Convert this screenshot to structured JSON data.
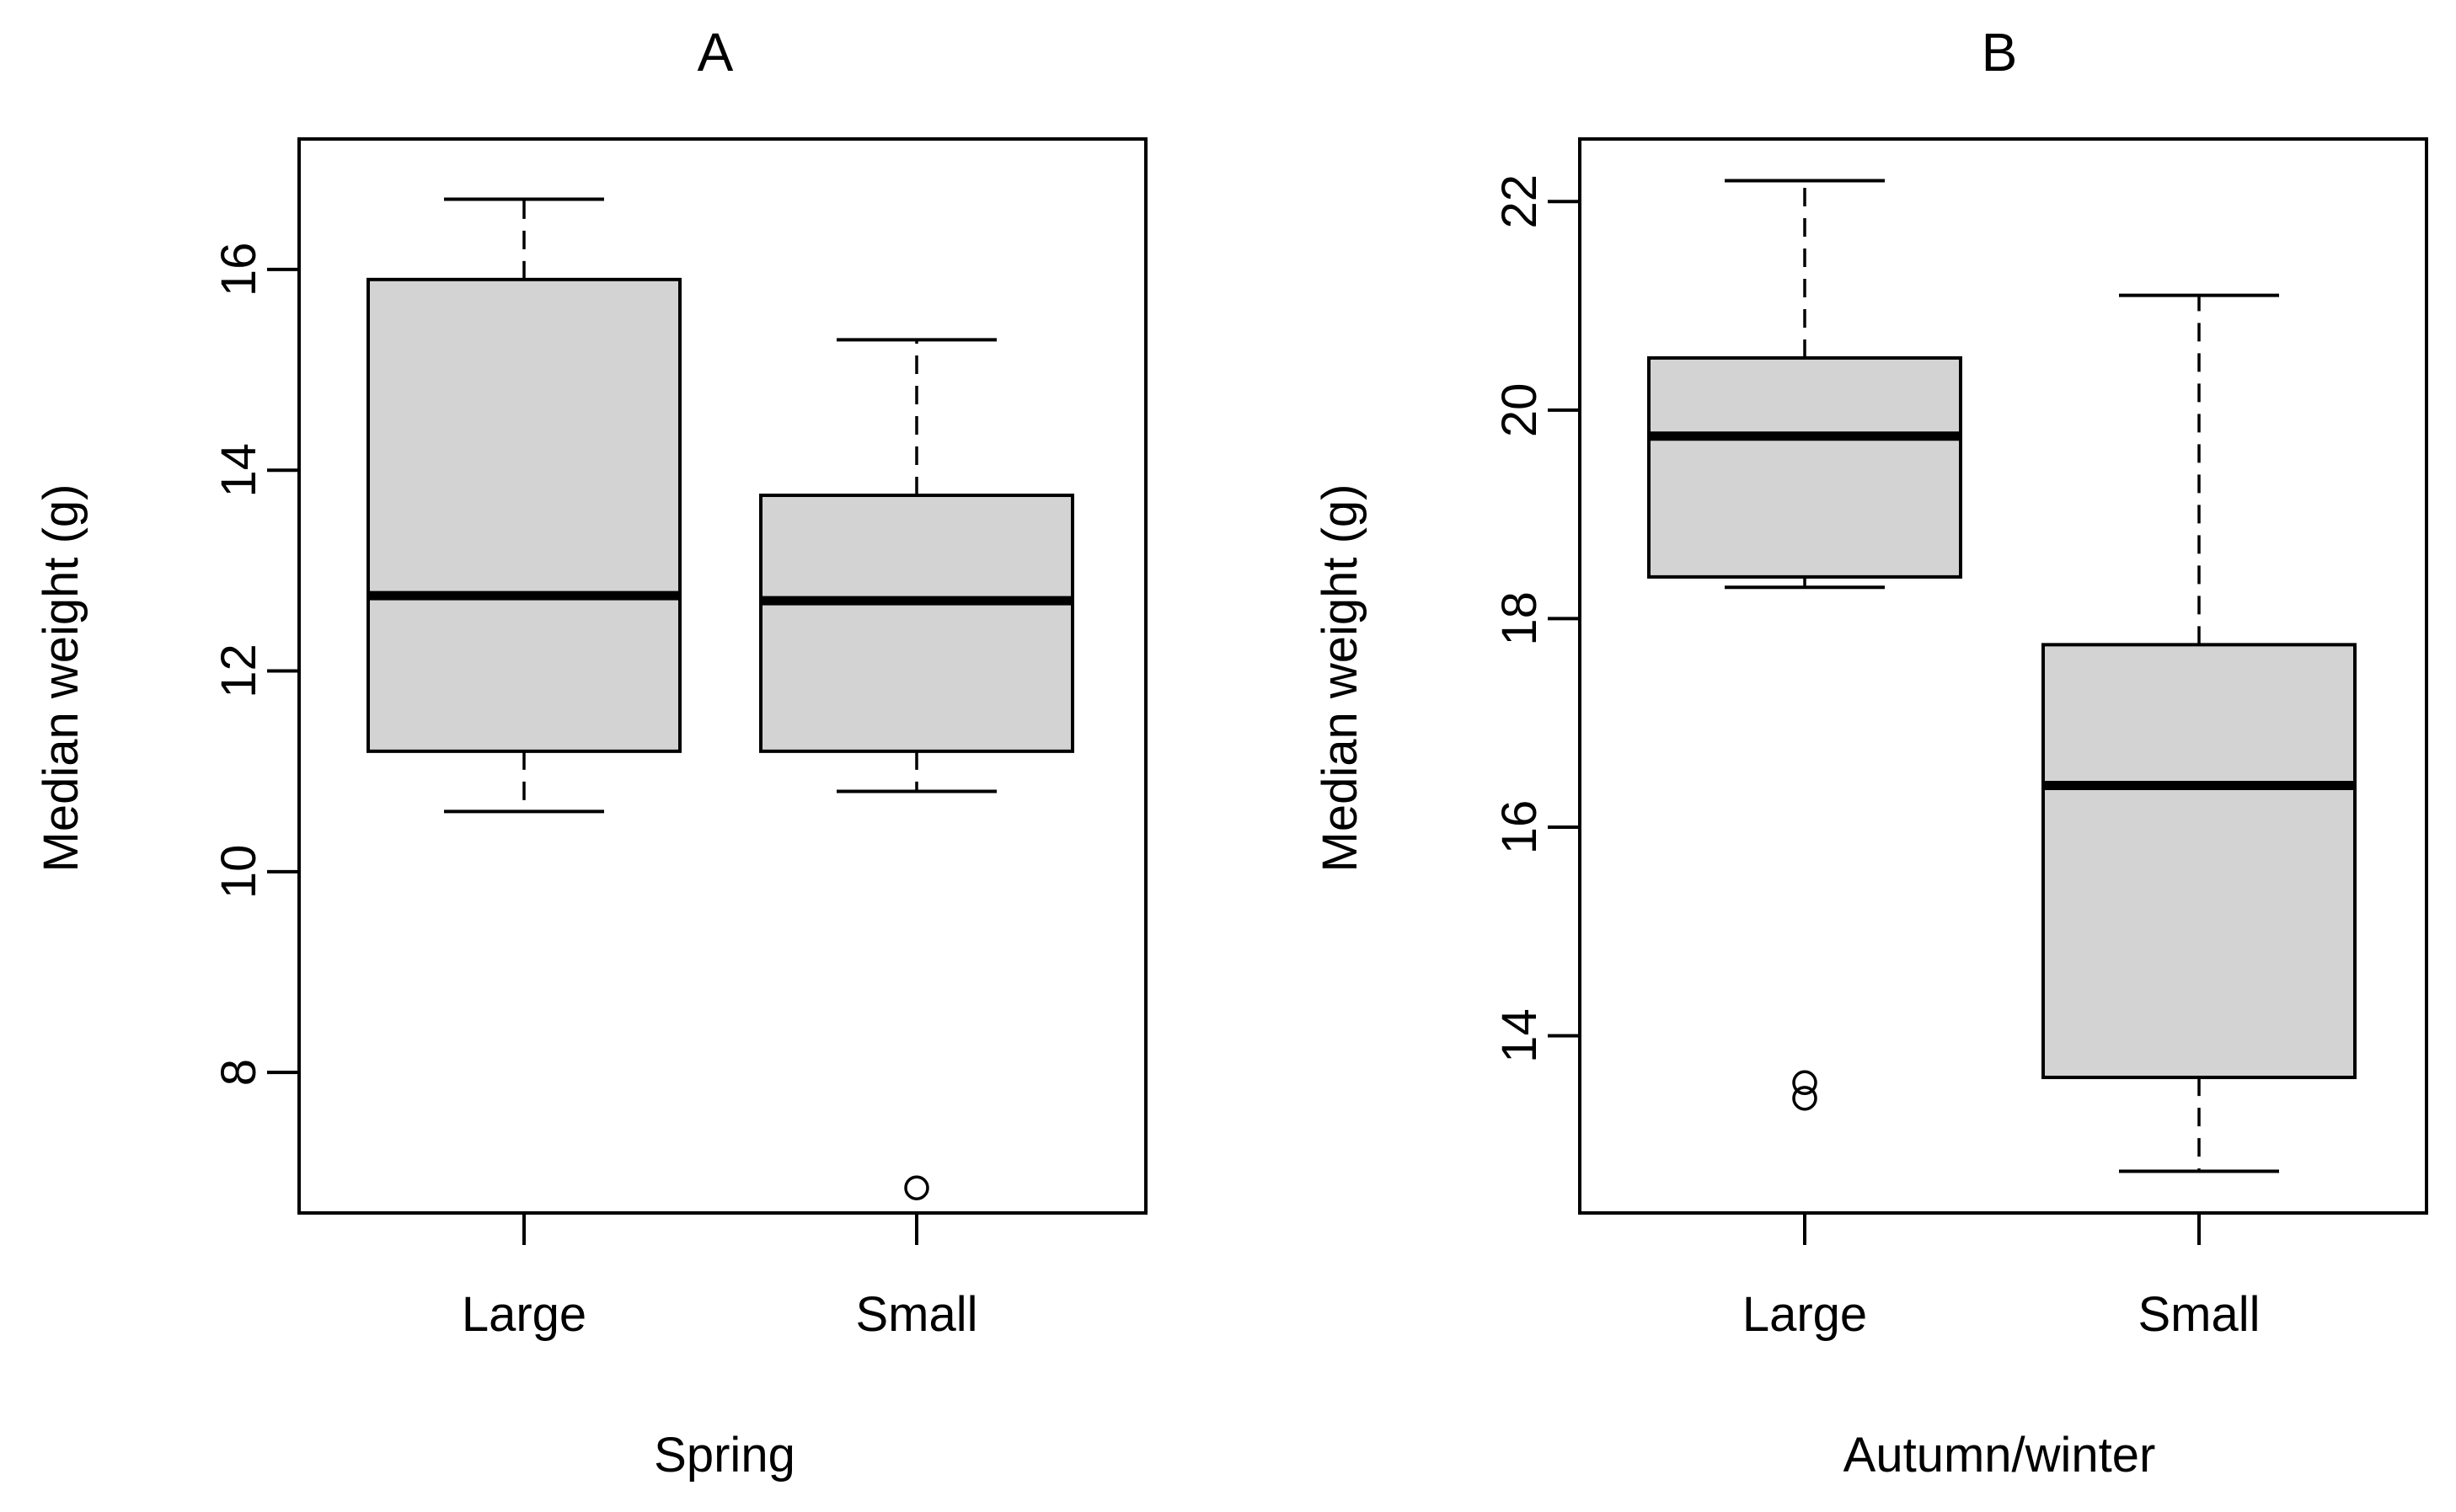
{
  "chart_data": [
    {
      "id": "A",
      "type": "boxplot",
      "title": "A",
      "xlabel": "Spring",
      "ylabel": "Median weight (g)",
      "ylim": [
        6.6,
        17.3
      ],
      "yticks": [
        8,
        10,
        12,
        14,
        16
      ],
      "categories": [
        "Large",
        "Small"
      ],
      "boxes": [
        {
          "name": "Large",
          "whisker_low": 10.6,
          "q1": 11.2,
          "median": 12.75,
          "q3": 15.9,
          "whisker_high": 16.7,
          "outliers": []
        },
        {
          "name": "Small",
          "whisker_low": 10.8,
          "q1": 11.2,
          "median": 12.7,
          "q3": 13.75,
          "whisker_high": 15.3,
          "outliers": [
            6.85
          ]
        }
      ]
    },
    {
      "id": "B",
      "type": "boxplot",
      "title": "B",
      "xlabel": "Autumn/winter",
      "ylabel": "Median weight (g)",
      "ylim": [
        12.3,
        22.6
      ],
      "yticks": [
        14,
        16,
        18,
        20,
        22
      ],
      "categories": [
        "Large",
        "Small"
      ],
      "boxes": [
        {
          "name": "Large",
          "whisker_low": 18.3,
          "q1": 18.4,
          "median": 19.75,
          "q3": 20.5,
          "whisker_high": 22.2,
          "outliers": [
            13.4,
            13.55
          ]
        },
        {
          "name": "Small",
          "whisker_low": 12.7,
          "q1": 13.6,
          "median": 16.4,
          "q3": 17.75,
          "whisker_high": 21.1,
          "outliers": []
        }
      ]
    }
  ]
}
